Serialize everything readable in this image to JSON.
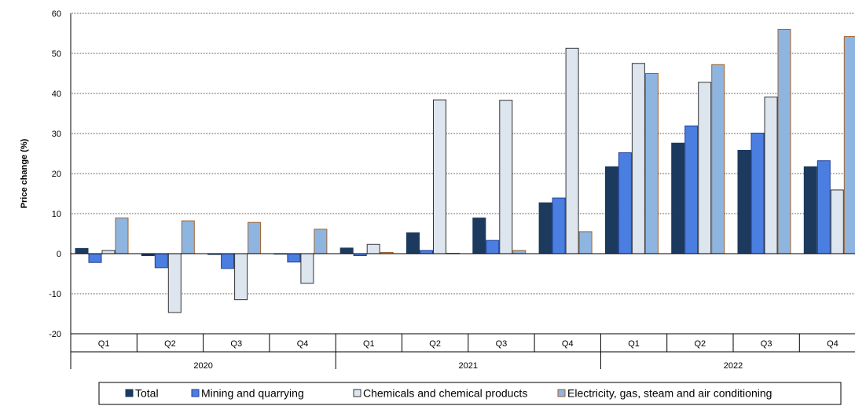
{
  "chart_data": {
    "type": "bar",
    "title": "",
    "xlabel": "",
    "ylabel": "Price change (%)",
    "ylim": [
      -20,
      60
    ],
    "yticks": [
      -20,
      -10,
      0,
      10,
      20,
      30,
      40,
      50,
      60
    ],
    "grid": "horizontal dotted",
    "legend_position": "bottom",
    "categories": [
      "Q1",
      "Q2",
      "Q3",
      "Q4",
      "Q1",
      "Q2",
      "Q3",
      "Q4",
      "Q1",
      "Q2",
      "Q3",
      "Q4"
    ],
    "years": [
      {
        "label": "2020",
        "span": 4
      },
      {
        "label": "2021",
        "span": 4
      },
      {
        "label": "2022",
        "span": 4
      }
    ],
    "series": [
      {
        "name": "Total",
        "color": "#1c3a5e",
        "border": "#1c3a5e",
        "values": [
          1.3,
          -0.5,
          -0.2,
          -0.1,
          1.4,
          5.2,
          8.9,
          12.7,
          21.7,
          27.6,
          25.8,
          21.7
        ]
      },
      {
        "name": "Mining and quarrying",
        "color": "#4a7ee0",
        "border": "#1f3f9a",
        "values": [
          -2.2,
          -3.5,
          -3.7,
          -2.1,
          -0.5,
          0.8,
          3.3,
          13.9,
          25.2,
          31.9,
          30.1,
          23.2
        ]
      },
      {
        "name": "Chemicals and chemical products",
        "color": "#dde5ef",
        "border": "#333333",
        "values": [
          0.8,
          -14.7,
          -11.5,
          -7.4,
          2.3,
          38.4,
          38.3,
          51.3,
          47.5,
          42.8,
          39.1,
          15.9
        ]
      },
      {
        "name": "Electricity, gas, steam and air conditioning",
        "color": "#8eb4e0",
        "border": "#a0622a",
        "values": [
          8.9,
          8.2,
          7.8,
          6.1,
          0.3,
          0.1,
          0.8,
          5.5,
          45.0,
          47.2,
          56.0,
          54.2
        ]
      }
    ]
  }
}
